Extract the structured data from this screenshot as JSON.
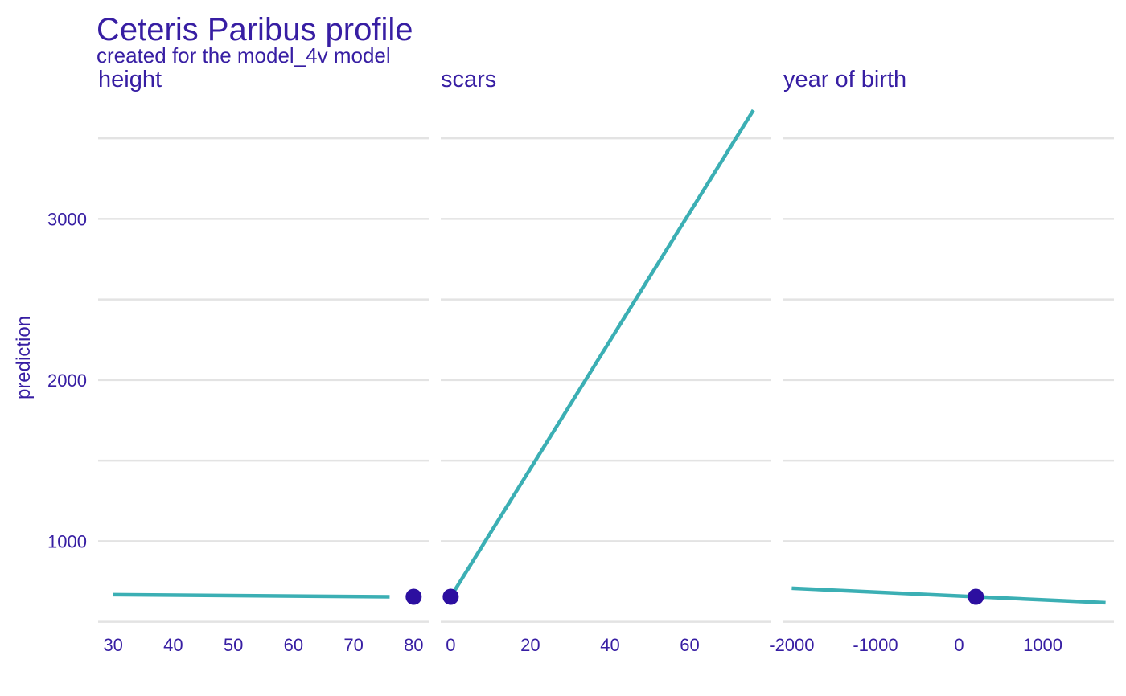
{
  "chart_data": {
    "type": "line",
    "title": "Ceteris Paribus profile",
    "subtitle": "created for the model_4v model",
    "ylabel": "prediction",
    "xlabel": "",
    "ylim": [
      458,
      3800
    ],
    "y_ticks": [
      1000,
      2000,
      3000
    ],
    "grid": true,
    "colors": {
      "text": "#371ea3",
      "line": "#3bafb4",
      "point": "#2c0fa0",
      "grid": "#e3e3e3"
    },
    "panels": [
      {
        "name": "height",
        "xlim": [
          27.5,
          82.5
        ],
        "x_ticks": [
          30,
          40,
          50,
          60,
          70,
          80
        ],
        "series": [
          {
            "x": [
              30,
              76
            ],
            "y": [
              668,
              655
            ]
          }
        ],
        "observation": {
          "x": 80,
          "y": 655
        }
      },
      {
        "name": "scars",
        "xlim": [
          -2.5,
          80.5
        ],
        "x_ticks": [
          0,
          20,
          40,
          60
        ],
        "series": [
          {
            "x": [
              0,
              76
            ],
            "y": [
              655,
              3675
            ]
          }
        ],
        "observation": {
          "x": 0,
          "y": 655
        }
      },
      {
        "name": "year  of  birth",
        "xlim": [
          -2100,
          1850
        ],
        "x_ticks": [
          -2000,
          -1000,
          0,
          1000
        ],
        "series": [
          {
            "x": [
              -2000,
              1750
            ],
            "y": [
              708,
              618
            ]
          }
        ],
        "observation": {
          "x": 200,
          "y": 655
        }
      }
    ]
  }
}
